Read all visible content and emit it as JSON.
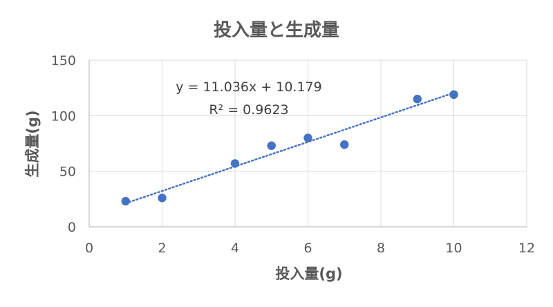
{
  "chart_data": {
    "type": "scatter",
    "title": "投入量と生成量",
    "xlabel": "投入量(g)",
    "ylabel": "生成量(g)",
    "xlim": [
      0,
      12
    ],
    "ylim": [
      0,
      150
    ],
    "xticks": [
      0,
      2,
      4,
      6,
      8,
      10,
      12
    ],
    "yticks": [
      0,
      50,
      100,
      150
    ],
    "grid": true,
    "series": [
      {
        "x": [
          1,
          2,
          4,
          5,
          6,
          7,
          9,
          10
        ],
        "y": [
          23,
          26,
          57,
          73,
          80,
          74,
          115,
          119
        ],
        "color": "#4472C4"
      }
    ],
    "trendline": {
      "type": "linear",
      "slope": 11.036,
      "intercept": 10.179,
      "x_range": [
        1,
        10
      ],
      "style": "dotted",
      "color": "#4472C4",
      "equation_label": "y = 11.036x + 10.179",
      "r2_label": "R² = 0.9623"
    }
  }
}
